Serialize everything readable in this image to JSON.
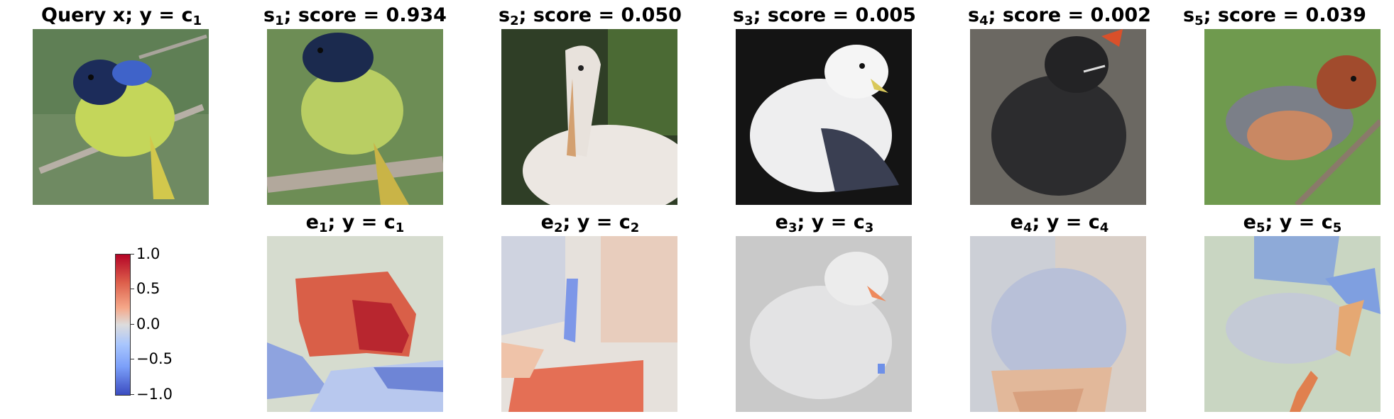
{
  "row1": [
    {
      "prefix": "Query x; y",
      "eq": " = ",
      "sym": "c",
      "sub": "1",
      "kind": "query"
    },
    {
      "sym": "s",
      "sub": "1",
      "label": "; score = ",
      "score": "0.934"
    },
    {
      "sym": "s",
      "sub": "2",
      "label": "; score = ",
      "score": "0.050"
    },
    {
      "sym": "s",
      "sub": "3",
      "label": "; score = ",
      "score": "0.005"
    },
    {
      "sym": "s",
      "sub": "4",
      "label": "; score = ",
      "score": "0.002"
    },
    {
      "sym": "s",
      "sub": "5",
      "label": "; score = ",
      "score": "0.039"
    }
  ],
  "row2": [
    {
      "sym": "e",
      "sub": "1",
      "mid": "; y",
      "eq": " = ",
      "csym": "c",
      "csub": "1"
    },
    {
      "sym": "e",
      "sub": "2",
      "mid": "; y",
      "eq": " = ",
      "csym": "c",
      "csub": "2"
    },
    {
      "sym": "e",
      "sub": "3",
      "mid": "; y",
      "eq": " = ",
      "csym": "c",
      "csub": "3"
    },
    {
      "sym": "e",
      "sub": "4",
      "mid": "; y",
      "eq": " = ",
      "csym": "c",
      "csub": "4"
    },
    {
      "sym": "e",
      "sub": "5",
      "mid": "; y",
      "eq": " = ",
      "csym": "c",
      "csub": "5"
    }
  ],
  "colorbar": {
    "ticks": [
      "1.0",
      "0.5",
      "0.0",
      "−0.5",
      "−1.0"
    ],
    "range": [
      -1.0,
      1.0
    ],
    "colormap": "coolwarm"
  },
  "colors": {
    "positive": "#b40426",
    "neutral": "#dddcdc",
    "negative": "#3b4cc0"
  }
}
